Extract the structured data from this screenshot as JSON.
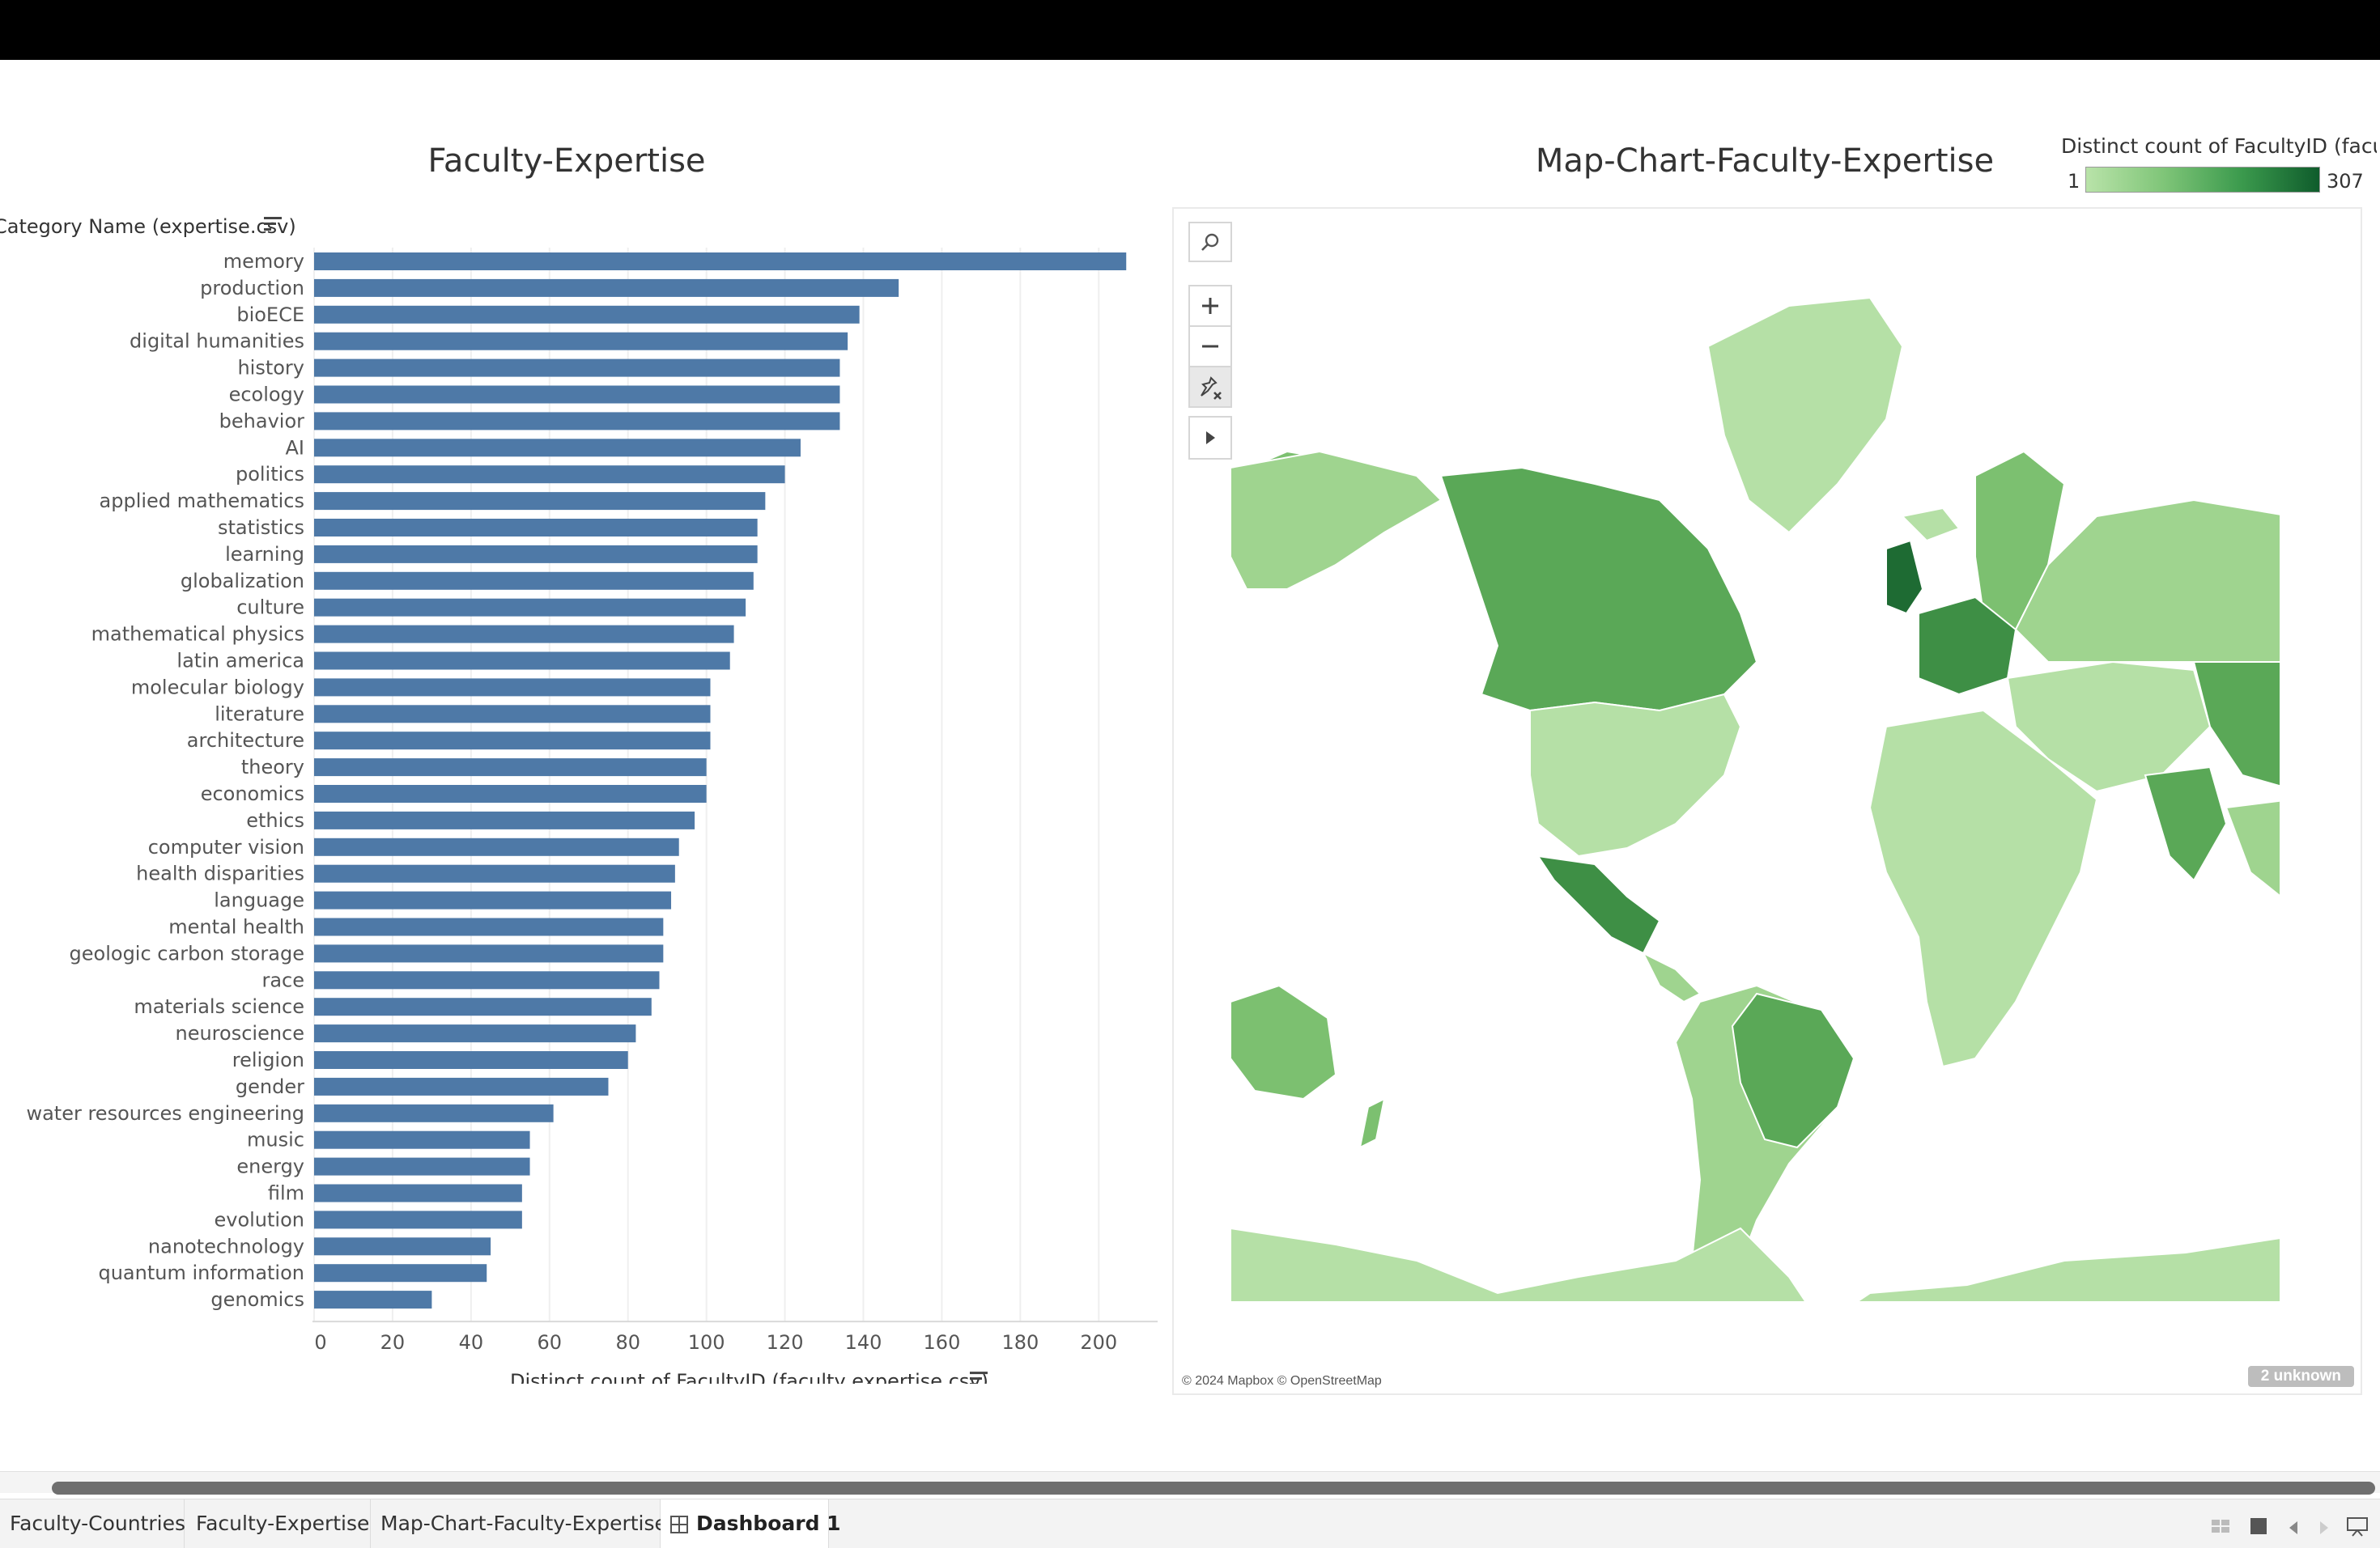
{
  "bar_chart": {
    "title": "Faculty-Expertise",
    "row_header": "Category Name (expertise.csv)",
    "x_axis_label": "Distinct count of FacultyID (faculty expertise.csv)"
  },
  "chart_data": {
    "type": "bar",
    "orientation": "horizontal",
    "title": "Faculty-Expertise",
    "ylabel": "Category Name (expertise.csv)",
    "xlabel": "Distinct count of FacultyID (faculty expertise.csv)",
    "xlim": [
      0,
      215
    ],
    "xticks": [
      0,
      20,
      40,
      60,
      80,
      100,
      120,
      140,
      160,
      180,
      200
    ],
    "grid": true,
    "color": "#4e79a7",
    "categories": [
      "memory",
      "production",
      "bioECE",
      "digital humanities",
      "history",
      "ecology",
      "behavior",
      "AI",
      "politics",
      "applied mathematics",
      "statistics",
      "learning",
      "globalization",
      "culture",
      "mathematical physics",
      "latin america",
      "molecular biology",
      "literature",
      "architecture",
      "theory",
      "economics",
      "ethics",
      "computer vision",
      "health disparities",
      "language",
      "mental health",
      "geologic carbon storage",
      "race",
      "materials science",
      "neuroscience",
      "religion",
      "gender",
      "water resources engineering",
      "music",
      "energy",
      "film",
      "evolution",
      "nanotechnology",
      "quantum information",
      "genomics"
    ],
    "values": [
      207,
      149,
      139,
      136,
      134,
      134,
      134,
      124,
      120,
      115,
      113,
      113,
      112,
      110,
      107,
      106,
      101,
      101,
      101,
      100,
      100,
      97,
      93,
      92,
      91,
      89,
      89,
      88,
      86,
      82,
      80,
      75,
      61,
      55,
      55,
      53,
      53,
      45,
      44,
      30
    ]
  },
  "map_chart": {
    "title": "Map-Chart-Faculty-Expertise",
    "legend_title": "Distinct count of FacultyID (facu..",
    "legend_min": "1",
    "legend_max": "307",
    "credit": "© 2024 Mapbox © OpenStreetMap",
    "unknown": "2 unknown",
    "colors": {
      "very_light": "#b5e0a6",
      "light": "#9fd48f",
      "medium": "#7cc070",
      "dark": "#5aa857",
      "darker": "#3e8f45",
      "darkest": "#1e6b33",
      "nodata": "#e9e9e9"
    },
    "tools": [
      "search-icon",
      "zoom-in-icon",
      "zoom-out-icon",
      "reset-map-icon",
      "expand-arrow-icon"
    ]
  },
  "tabs": [
    {
      "label": "Faculty-Countries"
    },
    {
      "label": "Faculty-Expertise"
    },
    {
      "label": "Map-Chart-Faculty-Expertise"
    },
    {
      "label": "Dashboard 1"
    }
  ]
}
